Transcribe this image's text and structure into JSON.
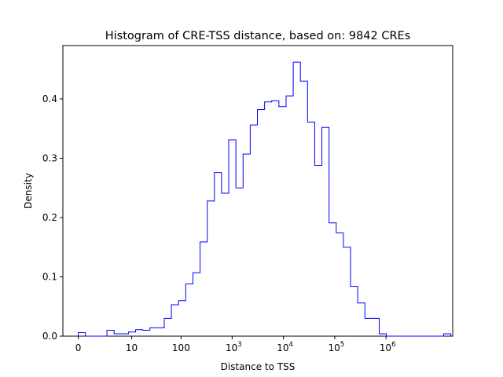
{
  "chart_data": {
    "type": "histogram",
    "title": "Histogram of CRE-TSS distance, based on: 9842 CREs",
    "xlabel": "Distance to TSS",
    "ylabel": "Density",
    "x_scale": "log10(1 + distance)",
    "xlim": [
      -0.3,
      7.3
    ],
    "ylim": [
      0,
      0.49
    ],
    "x_ticks": [
      {
        "value": 0,
        "label": "0"
      },
      {
        "value": 1.0414,
        "label": "10"
      },
      {
        "value": 2.0043,
        "label": "100"
      },
      {
        "value": 3.0,
        "base": "10",
        "exp": "3"
      },
      {
        "value": 4.0,
        "base": "10",
        "exp": "4"
      },
      {
        "value": 5.0,
        "base": "10",
        "exp": "5"
      },
      {
        "value": 6.0,
        "base": "10",
        "exp": "6"
      }
    ],
    "y_ticks": [
      {
        "value": 0.0,
        "label": "0.0"
      },
      {
        "value": 0.1,
        "label": "0.1"
      },
      {
        "value": 0.2,
        "label": "0.2"
      },
      {
        "value": 0.3,
        "label": "0.3"
      },
      {
        "value": 0.4,
        "label": "0.4"
      }
    ],
    "bin_start": 0.0,
    "bin_width": 0.1397,
    "densities": [
      0.006,
      0.0,
      0.0,
      0.0,
      0.01,
      0.004,
      0.004,
      0.007,
      0.011,
      0.01,
      0.014,
      0.014,
      0.03,
      0.053,
      0.06,
      0.088,
      0.107,
      0.159,
      0.228,
      0.276,
      0.241,
      0.331,
      0.25,
      0.307,
      0.356,
      0.382,
      0.395,
      0.397,
      0.387,
      0.405,
      0.462,
      0.43,
      0.361,
      0.288,
      0.352,
      0.191,
      0.174,
      0.15,
      0.084,
      0.056,
      0.03,
      0.03,
      0.004,
      0.0,
      0.0,
      0.0,
      0.0,
      0.0,
      0.0,
      0.0,
      0.0,
      0.004
    ],
    "line_color": "#0000ff",
    "grid": false
  }
}
